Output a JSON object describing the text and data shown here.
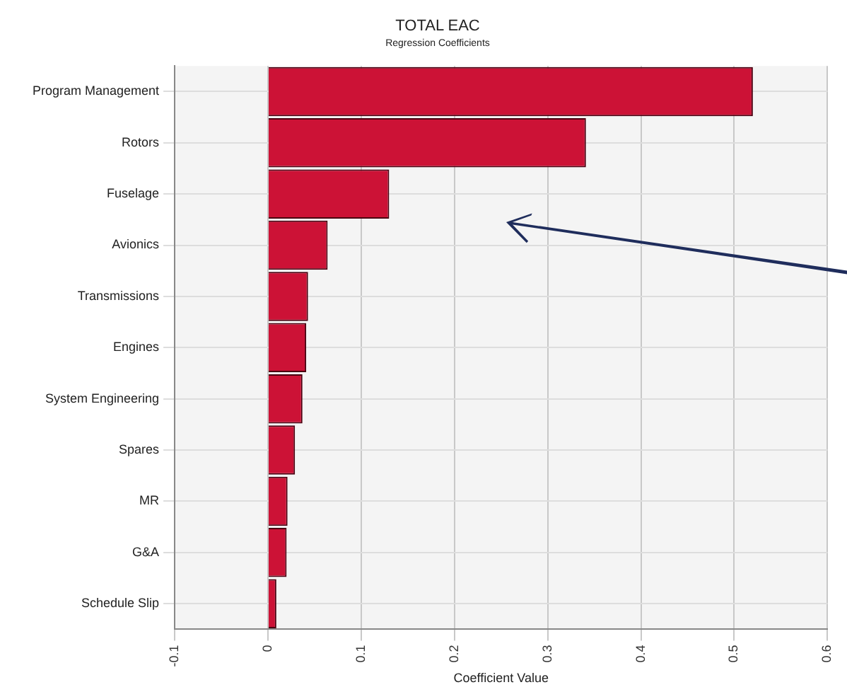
{
  "chart_data": {
    "type": "bar",
    "orientation": "horizontal",
    "title": "TOTAL EAC",
    "subtitle": "Regression Coefficients",
    "xlabel": "Coefficient Value",
    "categories": [
      "Program Management",
      "Rotors",
      "Fuselage",
      "Avionics",
      "Transmissions",
      "Engines",
      "System Engineering",
      "Spares",
      "MR",
      "G&A",
      "Schedule Slip"
    ],
    "values": [
      0.52,
      0.341,
      0.13,
      0.064,
      0.043,
      0.041,
      0.037,
      0.029,
      0.021,
      0.02,
      0.009
    ],
    "color": "#cc1236",
    "xlim": [
      -0.1,
      0.6
    ],
    "xticks": [
      -0.1,
      0,
      0.1,
      0.2,
      0.3,
      0.4,
      0.5,
      0.6
    ],
    "grid": true
  }
}
